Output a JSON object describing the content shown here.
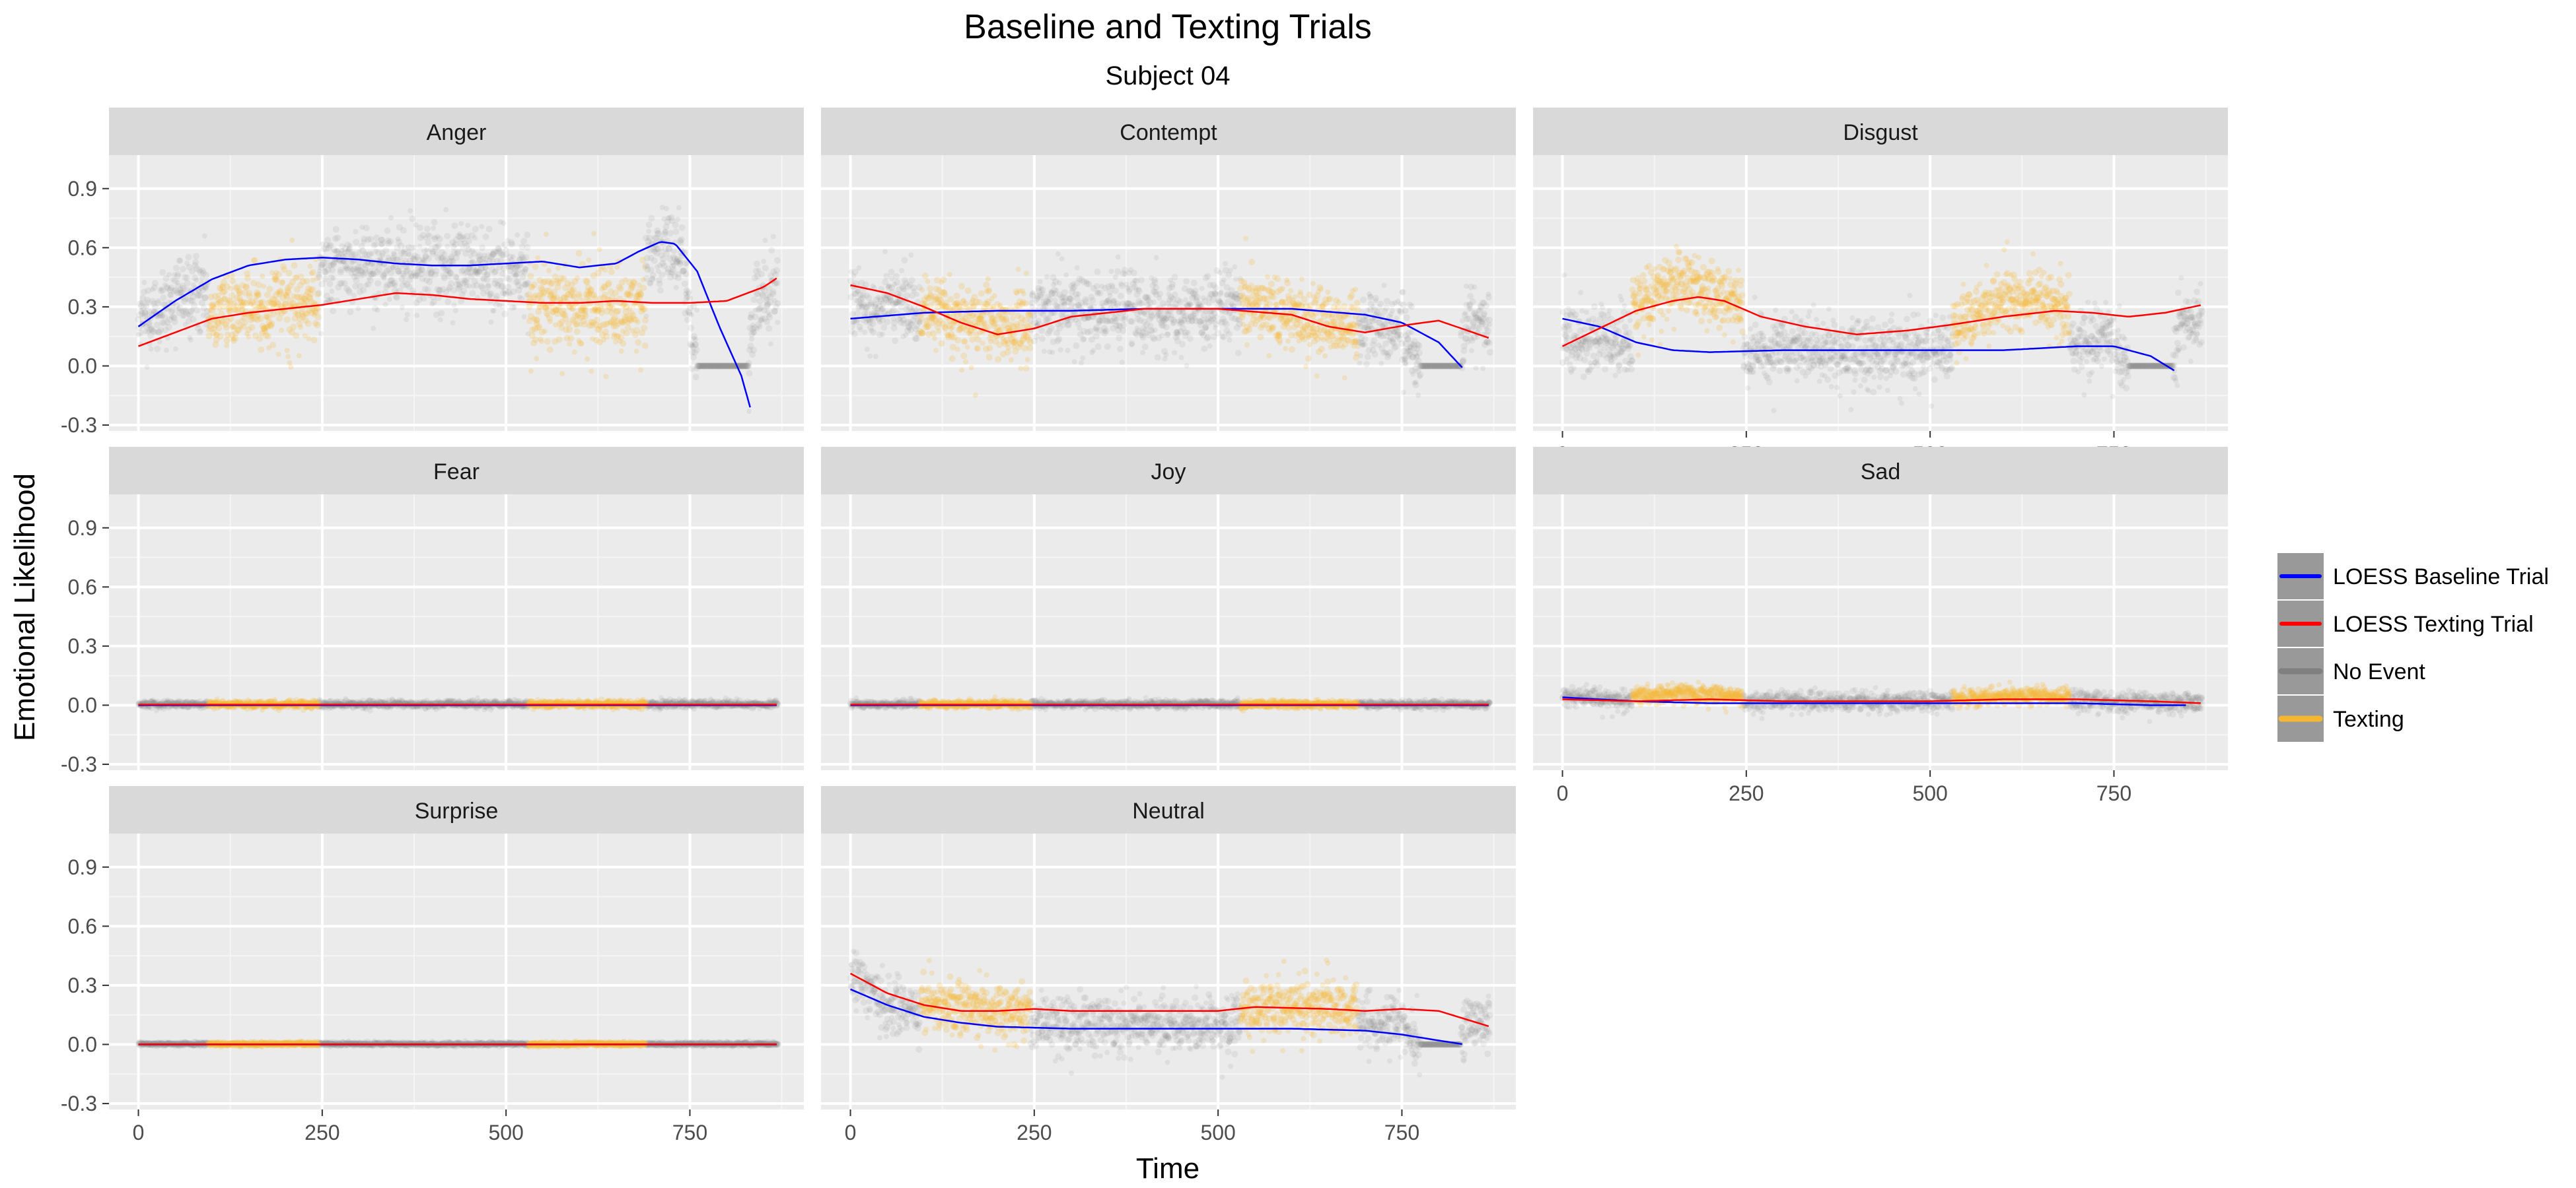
{
  "chart_data": {
    "type": "scatter",
    "title": "Baseline and Texting Trials",
    "subtitle": "Subject 04",
    "xlabel": "Time",
    "ylabel": "Emotional Likelihood",
    "xlim": [
      -40,
      905
    ],
    "ylim": [
      -0.33,
      1.07
    ],
    "x_ticks": [
      0,
      250,
      500,
      750
    ],
    "y_ticks": [
      -0.3,
      0.0,
      0.3,
      0.6,
      0.9
    ],
    "x_tick_labels": [
      "0",
      "250",
      "500",
      "750"
    ],
    "y_tick_labels": [
      "-0.3",
      "0.0",
      "0.3",
      "0.6",
      "0.9"
    ],
    "grid": true,
    "legend_position": "right",
    "legend": [
      {
        "label": "LOESS Baseline Trial",
        "color": "#0000ff",
        "kind": "line"
      },
      {
        "label": "LOESS Texting Trial",
        "color": "#ff0000",
        "kind": "line"
      },
      {
        "label": "No Event",
        "color": "#808080",
        "kind": "band"
      },
      {
        "label": "Texting",
        "color": "#f5b731",
        "kind": "band"
      }
    ],
    "texting_intervals": [
      [
        95,
        245
      ],
      [
        530,
        690
      ]
    ],
    "panels": [
      {
        "name": "Anger",
        "row": 0,
        "col": 0,
        "show_x_axis": false,
        "points": {
          "spread": 0.09,
          "noevent_mean": [
            [
              0,
              0.22
            ],
            [
              50,
              0.33
            ],
            [
              150,
              0.45
            ],
            [
              250,
              0.52
            ],
            [
              350,
              0.5
            ],
            [
              450,
              0.5
            ],
            [
              550,
              0.45
            ],
            [
              650,
              0.5
            ],
            [
              700,
              0.6
            ],
            [
              740,
              0.55
            ],
            [
              760,
              0.0
            ],
            [
              830,
              0.0
            ],
            [
              840,
              0.35
            ],
            [
              870,
              0.35
            ]
          ],
          "texting_mean": [
            [
              95,
              0.28
            ],
            [
              170,
              0.3
            ],
            [
              245,
              0.32
            ],
            [
              530,
              0.32
            ],
            [
              610,
              0.3
            ],
            [
              690,
              0.3
            ]
          ]
        },
        "baseline_loess": [
          [
            0,
            0.2
          ],
          [
            50,
            0.33
          ],
          [
            100,
            0.44
          ],
          [
            150,
            0.51
          ],
          [
            200,
            0.54
          ],
          [
            250,
            0.55
          ],
          [
            300,
            0.54
          ],
          [
            350,
            0.52
          ],
          [
            400,
            0.51
          ],
          [
            450,
            0.51
          ],
          [
            500,
            0.52
          ],
          [
            550,
            0.53
          ],
          [
            600,
            0.5
          ],
          [
            650,
            0.52
          ],
          [
            680,
            0.58
          ],
          [
            710,
            0.63
          ],
          [
            730,
            0.62
          ],
          [
            760,
            0.48
          ],
          [
            790,
            0.2
          ],
          [
            820,
            -0.05
          ],
          [
            835,
            -0.25
          ]
        ],
        "texting_loess": [
          [
            0,
            0.1
          ],
          [
            50,
            0.17
          ],
          [
            100,
            0.24
          ],
          [
            150,
            0.27
          ],
          [
            200,
            0.29
          ],
          [
            250,
            0.31
          ],
          [
            300,
            0.34
          ],
          [
            350,
            0.37
          ],
          [
            400,
            0.36
          ],
          [
            450,
            0.34
          ],
          [
            500,
            0.33
          ],
          [
            550,
            0.32
          ],
          [
            600,
            0.32
          ],
          [
            650,
            0.33
          ],
          [
            700,
            0.32
          ],
          [
            750,
            0.32
          ],
          [
            800,
            0.33
          ],
          [
            850,
            0.4
          ],
          [
            870,
            0.45
          ]
        ]
      },
      {
        "name": "Contempt",
        "row": 0,
        "col": 1,
        "show_x_axis": false,
        "points": {
          "spread": 0.08,
          "noevent_mean": [
            [
              0,
              0.3
            ],
            [
              100,
              0.3
            ],
            [
              200,
              0.25
            ],
            [
              300,
              0.3
            ],
            [
              400,
              0.28
            ],
            [
              500,
              0.3
            ],
            [
              600,
              0.25
            ],
            [
              700,
              0.22
            ],
            [
              750,
              0.2
            ],
            [
              775,
              0.0
            ],
            [
              830,
              0.0
            ],
            [
              840,
              0.25
            ],
            [
              870,
              0.2
            ]
          ],
          "texting_mean": [
            [
              95,
              0.3
            ],
            [
              170,
              0.22
            ],
            [
              245,
              0.18
            ],
            [
              530,
              0.3
            ],
            [
              610,
              0.25
            ],
            [
              690,
              0.2
            ]
          ]
        },
        "baseline_loess": [
          [
            0,
            0.24
          ],
          [
            100,
            0.27
          ],
          [
            200,
            0.28
          ],
          [
            300,
            0.28
          ],
          [
            400,
            0.29
          ],
          [
            500,
            0.29
          ],
          [
            600,
            0.29
          ],
          [
            700,
            0.26
          ],
          [
            750,
            0.22
          ],
          [
            800,
            0.12
          ],
          [
            835,
            -0.02
          ]
        ],
        "texting_loess": [
          [
            0,
            0.41
          ],
          [
            50,
            0.37
          ],
          [
            100,
            0.3
          ],
          [
            150,
            0.22
          ],
          [
            200,
            0.16
          ],
          [
            250,
            0.19
          ],
          [
            300,
            0.25
          ],
          [
            400,
            0.29
          ],
          [
            500,
            0.29
          ],
          [
            600,
            0.26
          ],
          [
            650,
            0.2
          ],
          [
            700,
            0.17
          ],
          [
            760,
            0.21
          ],
          [
            800,
            0.23
          ],
          [
            870,
            0.14
          ]
        ]
      },
      {
        "name": "Disgust",
        "row": 0,
        "col": 2,
        "show_x_axis": true,
        "points": {
          "spread": 0.07,
          "noevent_mean": [
            [
              0,
              0.15
            ],
            [
              90,
              0.1
            ],
            [
              250,
              0.08
            ],
            [
              400,
              0.07
            ],
            [
              530,
              0.08
            ],
            [
              690,
              0.1
            ],
            [
              740,
              0.15
            ],
            [
              770,
              0.0
            ],
            [
              830,
              0.0
            ],
            [
              840,
              0.22
            ],
            [
              870,
              0.25
            ]
          ],
          "texting_mean": [
            [
              95,
              0.35
            ],
            [
              170,
              0.42
            ],
            [
              245,
              0.3
            ],
            [
              530,
              0.2
            ],
            [
              610,
              0.35
            ],
            [
              690,
              0.3
            ]
          ]
        },
        "baseline_loess": [
          [
            0,
            0.24
          ],
          [
            50,
            0.2
          ],
          [
            100,
            0.12
          ],
          [
            150,
            0.08
          ],
          [
            200,
            0.07
          ],
          [
            300,
            0.08
          ],
          [
            400,
            0.08
          ],
          [
            500,
            0.08
          ],
          [
            600,
            0.08
          ],
          [
            700,
            0.1
          ],
          [
            750,
            0.1
          ],
          [
            800,
            0.05
          ],
          [
            835,
            -0.03
          ]
        ],
        "texting_loess": [
          [
            0,
            0.1
          ],
          [
            50,
            0.19
          ],
          [
            100,
            0.28
          ],
          [
            150,
            0.33
          ],
          [
            185,
            0.35
          ],
          [
            220,
            0.33
          ],
          [
            270,
            0.25
          ],
          [
            330,
            0.2
          ],
          [
            400,
            0.16
          ],
          [
            470,
            0.18
          ],
          [
            530,
            0.21
          ],
          [
            600,
            0.25
          ],
          [
            670,
            0.28
          ],
          [
            720,
            0.27
          ],
          [
            770,
            0.25
          ],
          [
            820,
            0.27
          ],
          [
            870,
            0.31
          ]
        ]
      },
      {
        "name": "Fear",
        "row": 1,
        "col": 0,
        "show_x_axis": false,
        "points": {
          "spread": 0.008,
          "noevent_mean": [
            [
              0,
              0.005
            ],
            [
              870,
              0.005
            ]
          ],
          "texting_mean": [
            [
              95,
              0.005
            ],
            [
              690,
              0.005
            ]
          ]
        },
        "baseline_loess": [
          [
            0,
            0.0
          ],
          [
            870,
            0.0
          ]
        ],
        "texting_loess": [
          [
            0,
            0.003
          ],
          [
            870,
            0.003
          ]
        ]
      },
      {
        "name": "Joy",
        "row": 1,
        "col": 1,
        "show_x_axis": false,
        "points": {
          "spread": 0.008,
          "noevent_mean": [
            [
              0,
              0.005
            ],
            [
              870,
              0.005
            ]
          ],
          "texting_mean": [
            [
              95,
              0.005
            ],
            [
              690,
              0.005
            ]
          ]
        },
        "baseline_loess": [
          [
            0,
            0.0
          ],
          [
            870,
            0.0
          ]
        ],
        "texting_loess": [
          [
            0,
            0.003
          ],
          [
            870,
            0.003
          ]
        ]
      },
      {
        "name": "Sad",
        "row": 1,
        "col": 2,
        "show_x_axis": true,
        "points": {
          "spread": 0.02,
          "noevent_mean": [
            [
              0,
              0.04
            ],
            [
              100,
              0.02
            ],
            [
              250,
              0.02
            ],
            [
              400,
              0.02
            ],
            [
              530,
              0.02
            ],
            [
              700,
              0.02
            ],
            [
              870,
              0.01
            ]
          ],
          "texting_mean": [
            [
              95,
              0.05
            ],
            [
              170,
              0.06
            ],
            [
              245,
              0.04
            ],
            [
              530,
              0.03
            ],
            [
              610,
              0.05
            ],
            [
              690,
              0.04
            ]
          ]
        },
        "baseline_loess": [
          [
            0,
            0.04
          ],
          [
            100,
            0.02
          ],
          [
            200,
            0.01
          ],
          [
            300,
            0.01
          ],
          [
            400,
            0.01
          ],
          [
            500,
            0.01
          ],
          [
            600,
            0.01
          ],
          [
            700,
            0.01
          ],
          [
            800,
            0.0
          ],
          [
            850,
            0.0
          ]
        ],
        "texting_loess": [
          [
            0,
            0.03
          ],
          [
            100,
            0.02
          ],
          [
            200,
            0.03
          ],
          [
            300,
            0.02
          ],
          [
            400,
            0.02
          ],
          [
            500,
            0.02
          ],
          [
            600,
            0.03
          ],
          [
            700,
            0.03
          ],
          [
            800,
            0.02
          ],
          [
            870,
            0.01
          ]
        ]
      },
      {
        "name": "Surprise",
        "row": 2,
        "col": 0,
        "show_x_axis": true,
        "points": {
          "spread": 0.004,
          "noevent_mean": [
            [
              0,
              0.002
            ],
            [
              870,
              0.002
            ]
          ],
          "texting_mean": [
            [
              95,
              0.002
            ],
            [
              690,
              0.002
            ]
          ]
        },
        "baseline_loess": [
          [
            0,
            0.0
          ],
          [
            870,
            0.0
          ]
        ],
        "texting_loess": [
          [
            0,
            0.001
          ],
          [
            870,
            0.001
          ]
        ]
      },
      {
        "name": "Neutral",
        "row": 2,
        "col": 1,
        "show_x_axis": true,
        "points": {
          "spread": 0.06,
          "noevent_mean": [
            [
              0,
              0.35
            ],
            [
              50,
              0.2
            ],
            [
              100,
              0.15
            ],
            [
              200,
              0.1
            ],
            [
              300,
              0.1
            ],
            [
              400,
              0.1
            ],
            [
              500,
              0.1
            ],
            [
              600,
              0.12
            ],
            [
              700,
              0.1
            ],
            [
              750,
              0.12
            ],
            [
              775,
              0.0
            ],
            [
              830,
              0.0
            ],
            [
              840,
              0.12
            ],
            [
              870,
              0.1
            ]
          ],
          "texting_mean": [
            [
              95,
              0.2
            ],
            [
              170,
              0.18
            ],
            [
              245,
              0.17
            ],
            [
              530,
              0.17
            ],
            [
              610,
              0.19
            ],
            [
              690,
              0.18
            ]
          ]
        },
        "baseline_loess": [
          [
            0,
            0.28
          ],
          [
            50,
            0.2
          ],
          [
            100,
            0.14
          ],
          [
            150,
            0.11
          ],
          [
            200,
            0.09
          ],
          [
            300,
            0.08
          ],
          [
            400,
            0.08
          ],
          [
            500,
            0.08
          ],
          [
            600,
            0.08
          ],
          [
            700,
            0.07
          ],
          [
            750,
            0.05
          ],
          [
            800,
            0.02
          ],
          [
            835,
            0.0
          ]
        ],
        "texting_loess": [
          [
            0,
            0.36
          ],
          [
            50,
            0.26
          ],
          [
            100,
            0.2
          ],
          [
            150,
            0.17
          ],
          [
            200,
            0.17
          ],
          [
            250,
            0.18
          ],
          [
            300,
            0.17
          ],
          [
            400,
            0.17
          ],
          [
            500,
            0.17
          ],
          [
            550,
            0.19
          ],
          [
            650,
            0.18
          ],
          [
            700,
            0.17
          ],
          [
            750,
            0.18
          ],
          [
            800,
            0.17
          ],
          [
            870,
            0.09
          ]
        ]
      }
    ]
  }
}
